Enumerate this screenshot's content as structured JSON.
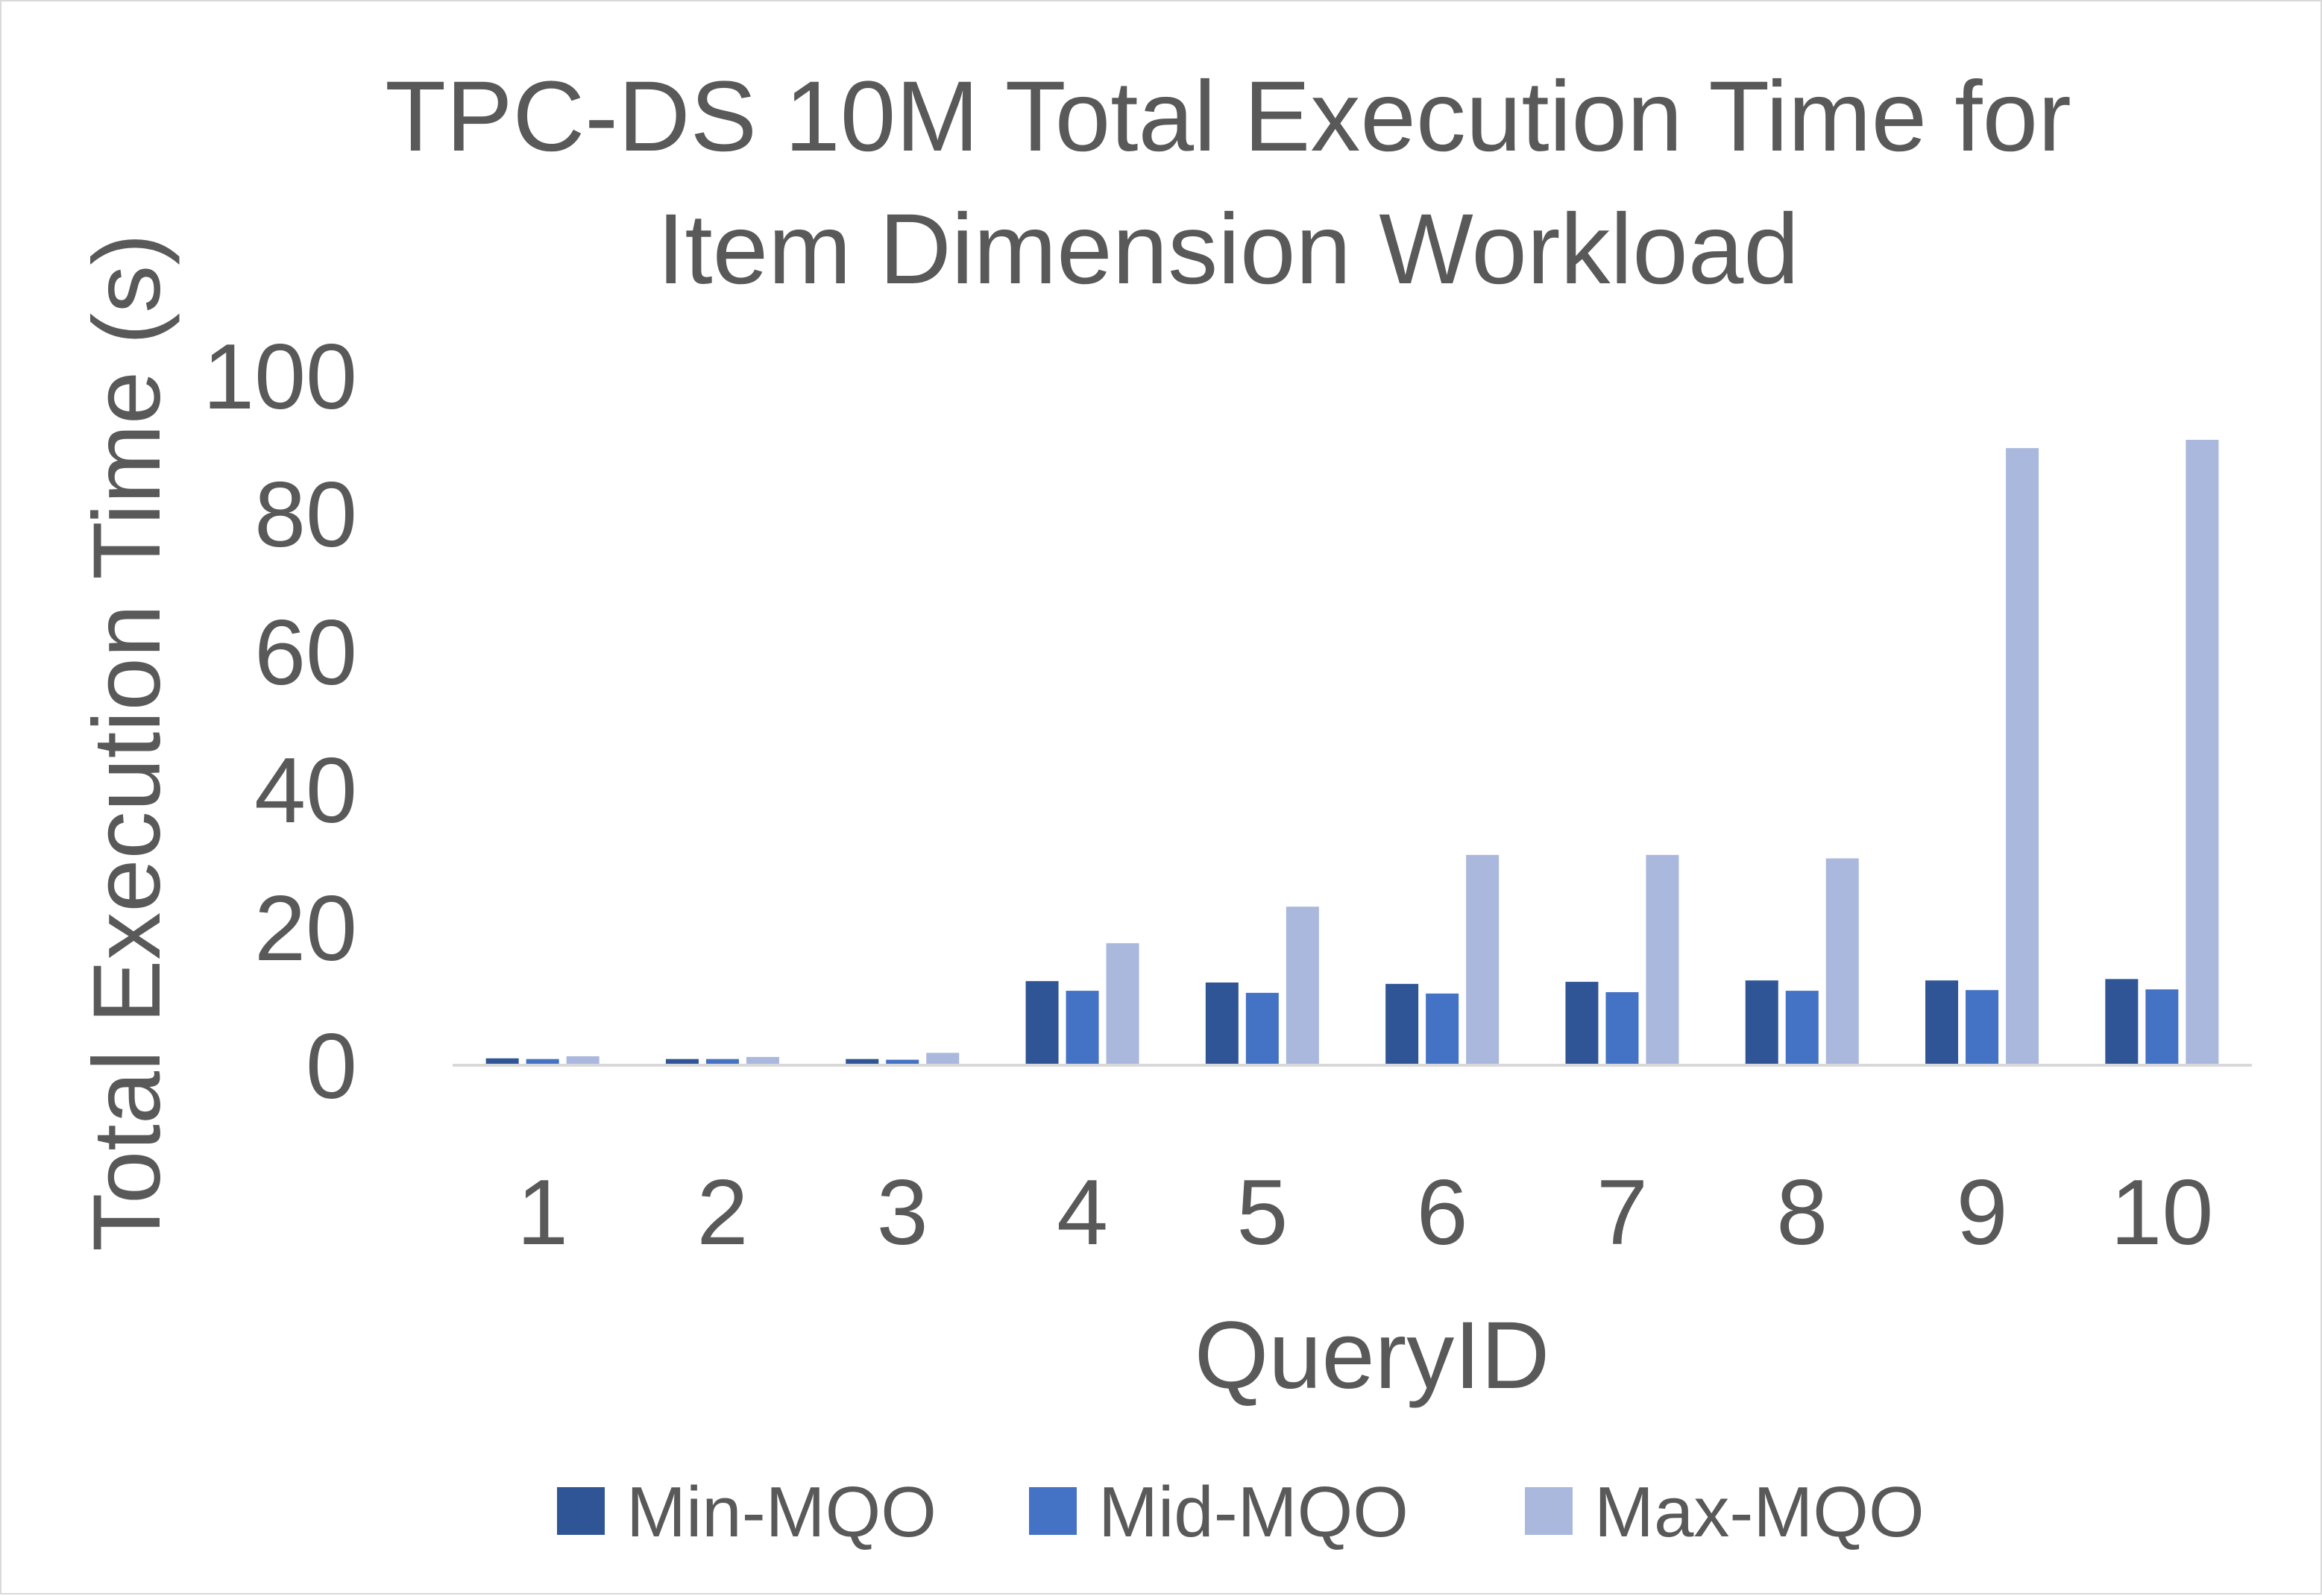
{
  "chart_data": {
    "type": "bar",
    "title_lines": [
      "TPC-DS 10M Total Execution Time for",
      "Item Dimension Workload"
    ],
    "xlabel": "QueryID",
    "ylabel": "Total Execution Time (s)",
    "categories": [
      "1",
      "2",
      "3",
      "4",
      "5",
      "6",
      "7",
      "8",
      "9",
      "10"
    ],
    "series": [
      {
        "name": "Min-MQO",
        "color": "#2f5597",
        "values": [
          1.0,
          0.9,
          0.9,
          12.2,
          12.0,
          11.8,
          12.1,
          12.3,
          12.3,
          12.5
        ]
      },
      {
        "name": "Mid-MQO",
        "color": "#4472c4",
        "values": [
          0.9,
          0.9,
          0.8,
          10.8,
          10.5,
          10.4,
          10.6,
          10.8,
          10.9,
          11.0
        ]
      },
      {
        "name": "Max-MQO",
        "color": "#a9b8dc",
        "values": [
          1.3,
          1.2,
          1.8,
          17.7,
          23.0,
          30.5,
          30.5,
          30.0,
          89.5,
          90.7
        ]
      }
    ],
    "yticks": [
      "0",
      "20",
      "40",
      "60",
      "80",
      "100"
    ],
    "ylim": [
      0,
      100
    ],
    "grid": false,
    "legend": "bottom"
  }
}
